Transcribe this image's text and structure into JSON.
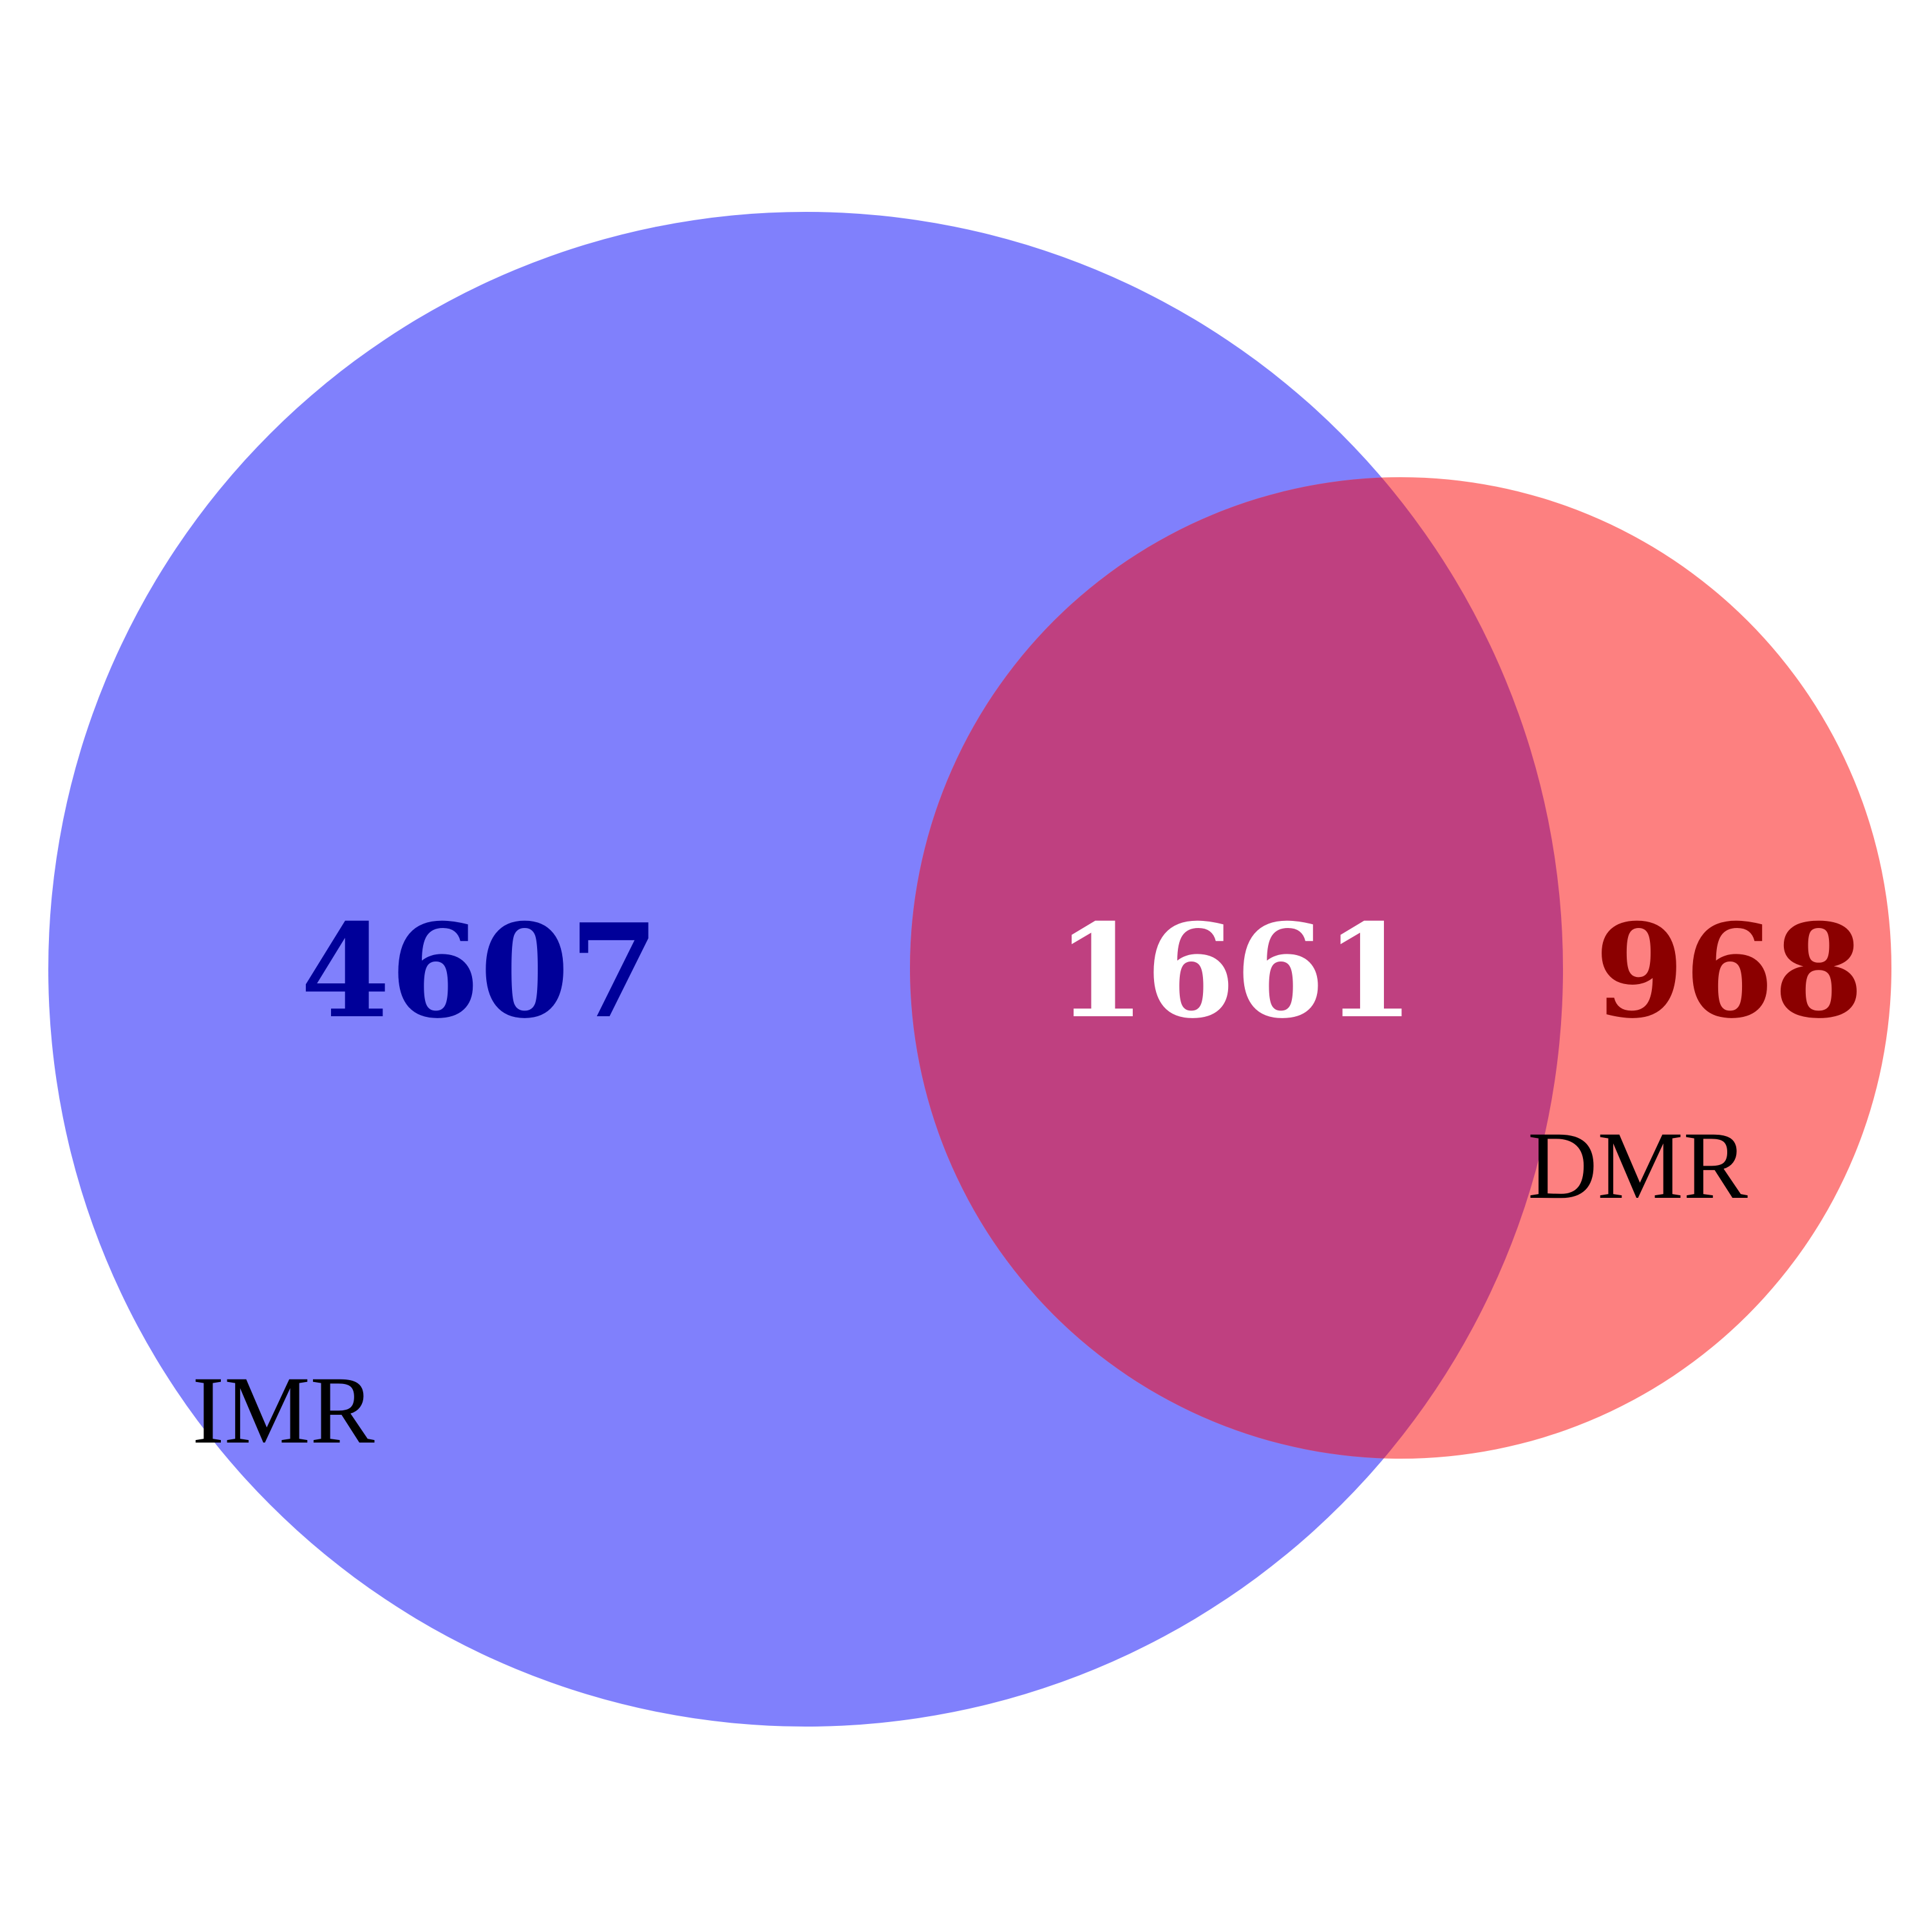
{
  "diagram": {
    "type": "venn",
    "sets": [
      {
        "label": "IMR",
        "only_count": "4607",
        "fill": "#8080fc",
        "count_color": "#000099"
      },
      {
        "label": "DMR",
        "only_count": "968",
        "fill": "#fd8080",
        "count_color": "#8b0000"
      }
    ],
    "intersection": {
      "count": "1661",
      "fill": "#bf4080",
      "count_color": "#ffffff"
    }
  }
}
